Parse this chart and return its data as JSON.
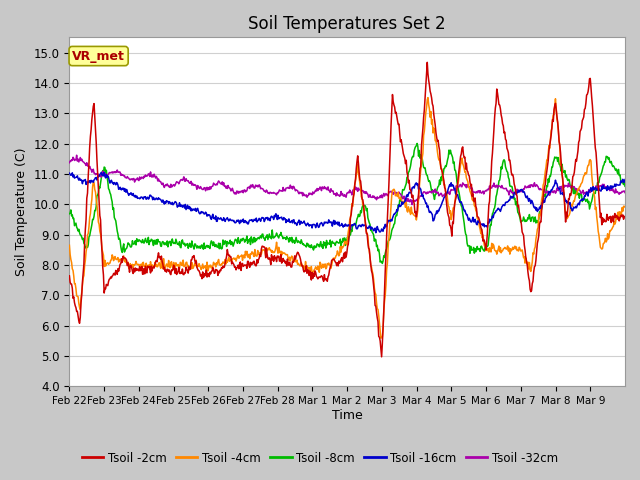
{
  "title": "Soil Temperatures Set 2",
  "xlabel": "Time",
  "ylabel": "Soil Temperature (C)",
  "ylim": [
    4.0,
    15.5
  ],
  "yticks": [
    4.0,
    5.0,
    6.0,
    7.0,
    8.0,
    9.0,
    10.0,
    11.0,
    12.0,
    13.0,
    14.0,
    15.0
  ],
  "series_colors": [
    "#cc0000",
    "#ff8800",
    "#00bb00",
    "#0000cc",
    "#aa00aa"
  ],
  "series_labels": [
    "Tsoil -2cm",
    "Tsoil -4cm",
    "Tsoil -8cm",
    "Tsoil -16cm",
    "Tsoil -32cm"
  ],
  "fig_bg_color": "#c8c8c8",
  "plot_bg_color": "#ffffff",
  "grid_color": "#d0d0d0",
  "annotation_text": "VR_met",
  "annotation_color": "#aa0000",
  "annotation_bg": "#ffff99",
  "annotation_border": "#999900",
  "xtick_labels": [
    "Feb 22",
    "Feb 23",
    "Feb 24",
    "Feb 25",
    "Feb 26",
    "Feb 27",
    "Feb 28",
    "Mar 1",
    "Mar 2",
    "Mar 3",
    "Mar 4",
    "Mar 5",
    "Mar 6",
    "Mar 7",
    "Mar 8",
    "Mar 9"
  ]
}
